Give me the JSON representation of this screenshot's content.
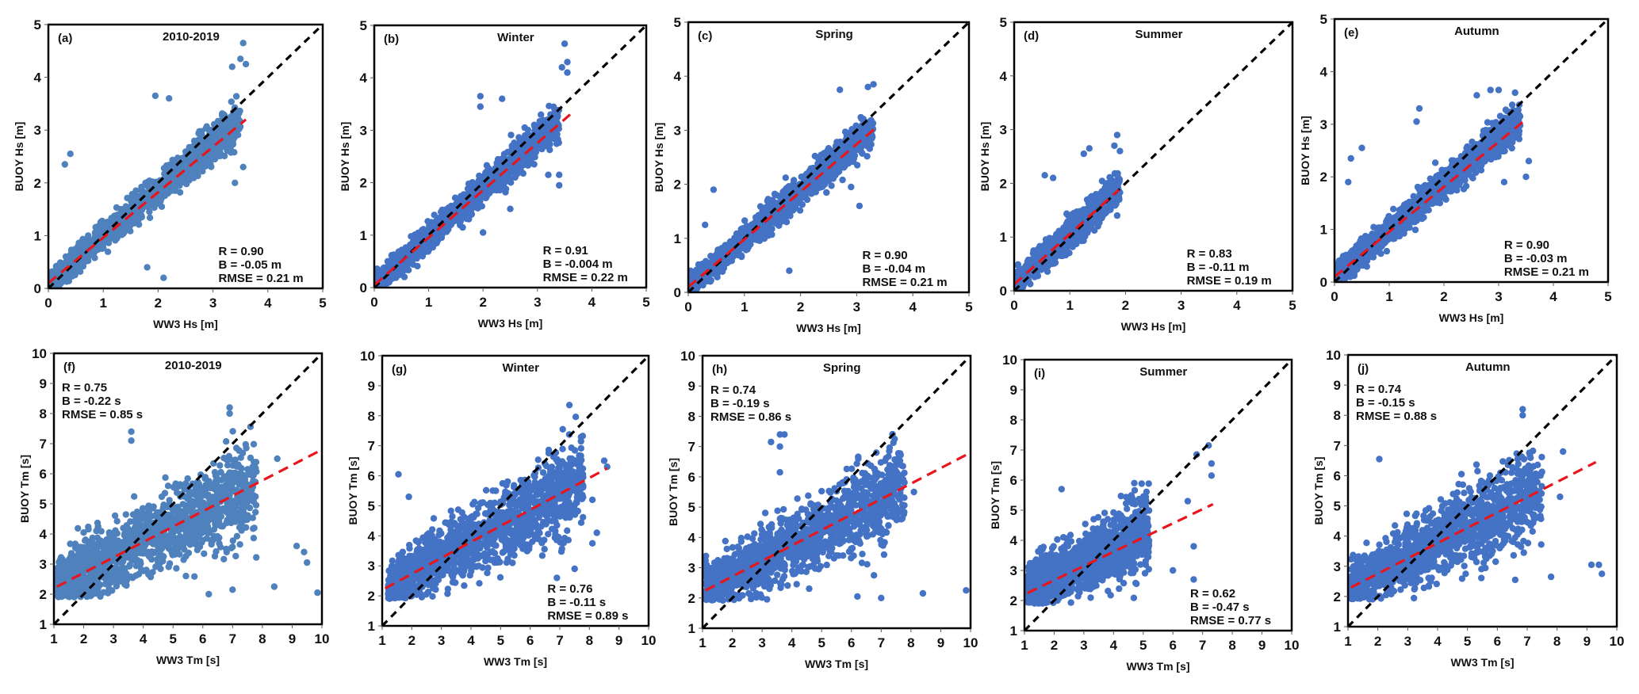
{
  "figure": {
    "rows": 2,
    "cols": 5
  },
  "chart_data": [
    {
      "id": "a",
      "type": "scatter",
      "tag": "(a)",
      "title": "2010-2019",
      "xlabel": "WW3 Hs [m]",
      "ylabel": "BUOY Hs [m]",
      "xlim": [
        0,
        5
      ],
      "ylim": [
        0,
        5
      ],
      "xticks": [
        0,
        1,
        2,
        3,
        4,
        5
      ],
      "yticks": [
        0,
        1,
        2,
        3,
        4,
        5
      ],
      "color": "#4f81bd",
      "stats": [
        "R = 0.90",
        "B = -0.05 m",
        "RMSE = 0.21 m"
      ],
      "stats_position": "bottom-right",
      "identity_line": [
        [
          0,
          0
        ],
        [
          5,
          5
        ]
      ],
      "fit_line": [
        [
          0,
          0.1
        ],
        [
          3.6,
          3.2
        ]
      ],
      "cloud": {
        "x_range": [
          0,
          3.5
        ],
        "slope": 0.88,
        "intercept": 0.1,
        "spread": 0.45,
        "y_min": 0.05
      },
      "outliers": [
        [
          3.55,
          4.65
        ],
        [
          3.5,
          4.35
        ],
        [
          3.6,
          4.25
        ],
        [
          3.35,
          4.2
        ],
        [
          1.95,
          3.65
        ],
        [
          2.2,
          3.6
        ],
        [
          3.4,
          2.0
        ],
        [
          3.55,
          2.3
        ],
        [
          2.1,
          0.2
        ],
        [
          1.8,
          0.4
        ],
        [
          0.4,
          2.55
        ],
        [
          0.3,
          2.35
        ]
      ]
    },
    {
      "id": "b",
      "type": "scatter",
      "tag": "(b)",
      "title": "Winter",
      "xlabel": "WW3 Hs [m]",
      "ylabel": "BUOY Hs [m]",
      "xlim": [
        0,
        5
      ],
      "ylim": [
        0,
        5
      ],
      "xticks": [
        0,
        1,
        2,
        3,
        4,
        5
      ],
      "yticks": [
        0,
        1,
        2,
        3,
        4,
        5
      ],
      "color": "#4472c4",
      "stats": [
        "R = 0.91",
        "B = -0.004 m",
        "RMSE = 0.22 m"
      ],
      "stats_position": "bottom-right",
      "identity_line": [
        [
          0,
          0
        ],
        [
          5,
          5
        ]
      ],
      "fit_line": [
        [
          0,
          0.05
        ],
        [
          3.6,
          3.3
        ]
      ],
      "cloud": {
        "x_range": [
          0,
          3.4
        ],
        "slope": 0.92,
        "intercept": 0.05,
        "spread": 0.42,
        "y_min": 0.05
      },
      "outliers": [
        [
          3.5,
          4.65
        ],
        [
          3.55,
          4.3
        ],
        [
          3.45,
          4.2
        ],
        [
          3.55,
          4.1
        ],
        [
          1.95,
          3.65
        ],
        [
          1.95,
          3.45
        ],
        [
          2.35,
          3.6
        ],
        [
          3.2,
          2.15
        ],
        [
          3.4,
          2.15
        ],
        [
          3.4,
          1.95
        ],
        [
          2.0,
          1.05
        ],
        [
          2.5,
          1.5
        ]
      ]
    },
    {
      "id": "c",
      "type": "scatter",
      "tag": "(c)",
      "title": "Spring",
      "xlabel": "WW3 Hs [m]",
      "ylabel": "BUOY Hs [m]",
      "xlim": [
        0,
        5
      ],
      "ylim": [
        0,
        5
      ],
      "xticks": [
        0,
        1,
        2,
        3,
        4,
        5
      ],
      "yticks": [
        0,
        1,
        2,
        3,
        4,
        5
      ],
      "color": "#4472c4",
      "stats": [
        "R = 0.90",
        "B = -0.04 m",
        "RMSE = 0.21 m"
      ],
      "stats_position": "bottom-right",
      "identity_line": [
        [
          0,
          0
        ],
        [
          5,
          5
        ]
      ],
      "fit_line": [
        [
          0,
          0.1
        ],
        [
          3.35,
          3.05
        ]
      ],
      "cloud": {
        "x_range": [
          0,
          3.3
        ],
        "slope": 0.9,
        "intercept": 0.08,
        "spread": 0.42,
        "y_min": 0.05
      },
      "outliers": [
        [
          3.3,
          3.85
        ],
        [
          3.2,
          3.8
        ],
        [
          2.7,
          3.75
        ],
        [
          3.05,
          1.6
        ],
        [
          2.9,
          1.95
        ],
        [
          1.8,
          0.4
        ],
        [
          0.45,
          1.9
        ],
        [
          0.3,
          1.25
        ]
      ]
    },
    {
      "id": "d",
      "type": "scatter",
      "tag": "(d)",
      "title": "Summer",
      "xlabel": "WW3 Hs [m]",
      "ylabel": "BUOY Hs [m]",
      "xlim": [
        0,
        5
      ],
      "ylim": [
        0,
        5
      ],
      "xticks": [
        0,
        1,
        2,
        3,
        4,
        5
      ],
      "yticks": [
        0,
        1,
        2,
        3,
        4,
        5
      ],
      "color": "#4472c4",
      "stats": [
        "R = 0.83",
        "B = -0.11 m",
        "RMSE = 0.19 m"
      ],
      "stats_position": "bottom-right",
      "identity_line": [
        [
          0,
          0
        ],
        [
          5,
          5
        ]
      ],
      "fit_line": [
        [
          0,
          0.12
        ],
        [
          1.88,
          1.88
        ]
      ],
      "cloud": {
        "x_range": [
          0,
          1.9
        ],
        "slope": 0.95,
        "intercept": 0.12,
        "spread": 0.38,
        "y_min": 0.05
      },
      "outliers": [
        [
          1.85,
          2.9
        ],
        [
          1.8,
          2.7
        ],
        [
          1.9,
          2.6
        ],
        [
          1.35,
          2.65
        ],
        [
          1.25,
          2.55
        ],
        [
          0.55,
          2.15
        ],
        [
          0.7,
          2.1
        ],
        [
          1.85,
          1.4
        ]
      ]
    },
    {
      "id": "e",
      "type": "scatter",
      "tag": "(e)",
      "title": "Autumn",
      "xlabel": "WW3 Hs [m]",
      "ylabel": "BUOY Hs [m]",
      "xlim": [
        0,
        5
      ],
      "ylim": [
        0,
        5
      ],
      "xticks": [
        0,
        1,
        2,
        3,
        4,
        5
      ],
      "yticks": [
        0,
        1,
        2,
        3,
        4,
        5
      ],
      "color": "#4472c4",
      "stats": [
        "R = 0.90",
        "B = -0.03 m",
        "RMSE = 0.21 m"
      ],
      "stats_position": "bottom-right",
      "identity_line": [
        [
          0,
          0
        ],
        [
          5,
          5
        ]
      ],
      "fit_line": [
        [
          0,
          0.1
        ],
        [
          3.45,
          3.05
        ]
      ],
      "cloud": {
        "x_range": [
          0,
          3.4
        ],
        "slope": 0.88,
        "intercept": 0.1,
        "spread": 0.42,
        "y_min": 0.05
      },
      "outliers": [
        [
          2.85,
          3.65
        ],
        [
          3.0,
          3.65
        ],
        [
          2.6,
          3.55
        ],
        [
          3.3,
          3.6
        ],
        [
          1.55,
          3.3
        ],
        [
          1.5,
          3.05
        ],
        [
          3.5,
          2.0
        ],
        [
          3.55,
          2.3
        ],
        [
          3.1,
          1.9
        ],
        [
          0.5,
          2.55
        ],
        [
          0.3,
          2.35
        ],
        [
          0.25,
          1.9
        ]
      ]
    },
    {
      "id": "f",
      "type": "scatter",
      "tag": "(f)",
      "title": "2010-2019",
      "xlabel": "WW3 Tm [s]",
      "ylabel": "BUOY Tm [s]",
      "xlim": [
        1,
        10
      ],
      "ylim": [
        1,
        10
      ],
      "xticks": [
        1,
        2,
        3,
        4,
        5,
        6,
        7,
        8,
        9,
        10
      ],
      "yticks": [
        1,
        2,
        3,
        4,
        5,
        6,
        7,
        8,
        9,
        10
      ],
      "color": "#4f81bd",
      "stats": [
        "R = 0.75",
        "B = -0.22 s",
        "RMSE = 0.85 s"
      ],
      "stats_position": "top-left",
      "identity_line": [
        [
          1,
          1
        ],
        [
          10,
          10
        ]
      ],
      "fit_line": [
        [
          1.1,
          2.25
        ],
        [
          10,
          6.8
        ]
      ],
      "cloud": {
        "x_range": [
          1.1,
          7.8
        ],
        "slope": 0.5,
        "intercept": 1.7,
        "spread": 1.9,
        "y_min": 1.9
      },
      "outliers": [
        [
          9.15,
          3.6
        ],
        [
          9.4,
          3.4
        ],
        [
          9.5,
          3.05
        ],
        [
          9.85,
          2.05
        ],
        [
          8.4,
          2.25
        ],
        [
          6.2,
          2.0
        ],
        [
          7.0,
          2.15
        ],
        [
          3.6,
          7.4
        ],
        [
          3.6,
          7.1
        ],
        [
          6.9,
          8.2
        ],
        [
          6.9,
          8.0
        ],
        [
          8.5,
          6.5
        ]
      ]
    },
    {
      "id": "g",
      "type": "scatter",
      "tag": "(g)",
      "title": "Winter",
      "xlabel": "WW3 Tm [s]",
      "ylabel": "BUOY Tm [s]",
      "xlim": [
        1,
        10
      ],
      "ylim": [
        1,
        10
      ],
      "xticks": [
        1,
        2,
        3,
        4,
        5,
        6,
        7,
        8,
        9,
        10
      ],
      "yticks": [
        1,
        2,
        3,
        4,
        5,
        6,
        7,
        8,
        9,
        10
      ],
      "color": "#4472c4",
      "stats": [
        "R = 0.76",
        "B = -0.11 s",
        "RMSE = 0.89 s"
      ],
      "stats_position": "bottom-right",
      "identity_line": [
        [
          1,
          1
        ],
        [
          10,
          10
        ]
      ],
      "fit_line": [
        [
          1.1,
          2.25
        ],
        [
          8.6,
          6.25
        ]
      ],
      "cloud": {
        "x_range": [
          1.2,
          7.8
        ],
        "slope": 0.55,
        "intercept": 1.6,
        "spread": 1.8,
        "y_min": 1.9
      },
      "outliers": [
        [
          1.55,
          6.05
        ],
        [
          7.1,
          7.55
        ],
        [
          8.5,
          6.5
        ],
        [
          8.6,
          6.3
        ],
        [
          8.1,
          5.2
        ],
        [
          8.25,
          4.1
        ],
        [
          8.1,
          3.75
        ],
        [
          7.5,
          2.9
        ],
        [
          6.9,
          2.6
        ],
        [
          1.9,
          5.3
        ]
      ]
    },
    {
      "id": "h",
      "type": "scatter",
      "tag": "(h)",
      "title": "Spring",
      "xlabel": "WW3 Tm [s]",
      "ylabel": "BUOY Tm [s]",
      "xlim": [
        1,
        10
      ],
      "ylim": [
        1,
        10
      ],
      "xticks": [
        1,
        2,
        3,
        4,
        5,
        6,
        7,
        8,
        9,
        10
      ],
      "yticks": [
        1,
        2,
        3,
        4,
        5,
        6,
        7,
        8,
        9,
        10
      ],
      "color": "#4472c4",
      "stats": [
        "R = 0.74",
        "B = -0.19 s",
        "RMSE = 0.86 s"
      ],
      "stats_position": "top-left",
      "identity_line": [
        [
          1,
          1
        ],
        [
          10,
          10
        ]
      ],
      "fit_line": [
        [
          1.1,
          2.25
        ],
        [
          10,
          6.8
        ]
      ],
      "cloud": {
        "x_range": [
          1.1,
          7.8
        ],
        "slope": 0.5,
        "intercept": 1.75,
        "spread": 1.8,
        "y_min": 1.9
      },
      "outliers": [
        [
          9.85,
          2.25
        ],
        [
          8.4,
          2.15
        ],
        [
          7.0,
          2.0
        ],
        [
          6.2,
          2.05
        ],
        [
          3.6,
          7.4
        ],
        [
          3.75,
          7.4
        ],
        [
          3.3,
          7.15
        ],
        [
          3.6,
          7.0
        ],
        [
          3.6,
          6.15
        ],
        [
          7.45,
          7.25
        ],
        [
          8.1,
          5.5
        ]
      ]
    },
    {
      "id": "i",
      "type": "scatter",
      "tag": "(i)",
      "title": "Summer",
      "xlabel": "WW3 Tm [s]",
      "ylabel": "BUOY Tm [s]",
      "xlim": [
        1,
        10
      ],
      "ylim": [
        1,
        10
      ],
      "xticks": [
        1,
        2,
        3,
        4,
        5,
        6,
        7,
        8,
        9,
        10
      ],
      "yticks": [
        1,
        2,
        3,
        4,
        5,
        6,
        7,
        8,
        9,
        10
      ],
      "color": "#4472c4",
      "stats": [
        "R = 0.62",
        "B = -0.47 s",
        "RMSE = 0.77 s"
      ],
      "stats_position": "bottom-right",
      "identity_line": [
        [
          1,
          1
        ],
        [
          10,
          10
        ]
      ],
      "fit_line": [
        [
          1.1,
          2.25
        ],
        [
          7.35,
          5.2
        ]
      ],
      "cloud": {
        "x_range": [
          1.1,
          5.2
        ],
        "slope": 0.45,
        "intercept": 1.9,
        "spread": 1.5,
        "y_min": 1.9
      },
      "outliers": [
        [
          7.2,
          7.15
        ],
        [
          7.3,
          6.55
        ],
        [
          6.8,
          6.85
        ],
        [
          6.7,
          3.8
        ],
        [
          6.7,
          2.7
        ],
        [
          6.0,
          3.0
        ],
        [
          2.25,
          5.7
        ],
        [
          4.7,
          5.9
        ],
        [
          6.5,
          5.3
        ],
        [
          7.3,
          6.15
        ]
      ]
    },
    {
      "id": "j",
      "type": "scatter",
      "tag": "(j)",
      "title": "Autumn",
      "xlabel": "WW3 Tm [s]",
      "ylabel": "BUOY Tm [s]",
      "xlim": [
        1,
        10
      ],
      "ylim": [
        1,
        10
      ],
      "xticks": [
        1,
        2,
        3,
        4,
        5,
        6,
        7,
        8,
        9,
        10
      ],
      "yticks": [
        1,
        2,
        3,
        4,
        5,
        6,
        7,
        8,
        9,
        10
      ],
      "color": "#4472c4",
      "stats": [
        "R = 0.74",
        "B = -0.15 s",
        "RMSE = 0.88 s"
      ],
      "stats_position": "top-left",
      "identity_line": [
        [
          1,
          1
        ],
        [
          10,
          10
        ]
      ],
      "fit_line": [
        [
          1.1,
          2.3
        ],
        [
          9.3,
          6.45
        ]
      ],
      "cloud": {
        "x_range": [
          1.1,
          7.5
        ],
        "slope": 0.5,
        "intercept": 1.8,
        "spread": 1.8,
        "y_min": 1.9
      },
      "outliers": [
        [
          9.15,
          3.05
        ],
        [
          9.4,
          3.05
        ],
        [
          9.5,
          2.75
        ],
        [
          7.8,
          2.65
        ],
        [
          6.85,
          8.2
        ],
        [
          6.85,
          8.0
        ],
        [
          2.05,
          6.55
        ],
        [
          8.2,
          6.8
        ],
        [
          8.1,
          5.3
        ],
        [
          6.6,
          2.55
        ]
      ]
    }
  ]
}
